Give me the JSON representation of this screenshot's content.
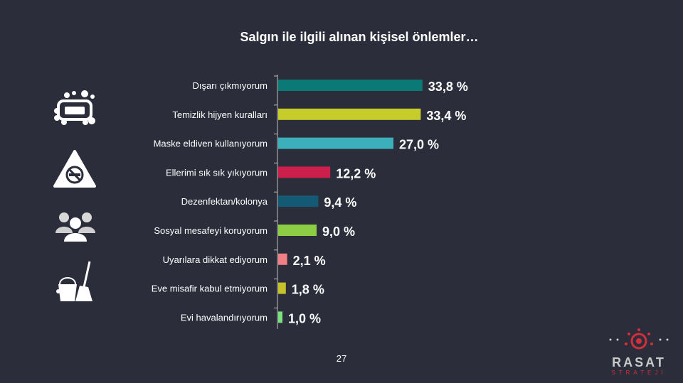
{
  "title": "Salgın ile ilgili alınan kişisel önlemler…",
  "page_number": "27",
  "logo": {
    "name": "RASAT",
    "sub": "STRATEJİ"
  },
  "icons": [
    "soap-icon",
    "no-smoking-icon",
    "people-icon",
    "cleaning-icon"
  ],
  "chart_data": {
    "type": "bar",
    "orientation": "horizontal",
    "categories": [
      "Dışarı çıkmıyorum",
      "Temizlik hijyen kuralları",
      "Maske eldiven kullanıyorum",
      "Ellerimi sık sık yıkıyorum",
      "Dezenfektan/kolonya",
      "Sosyal mesafeyi koruyorum",
      "Uyarılara dikkat ediyorum",
      "Eve misafir kabul etmiyorum",
      "Evi havalandırıyorum"
    ],
    "values": [
      33.8,
      33.4,
      27.0,
      12.2,
      9.4,
      9.0,
      2.1,
      1.8,
      1.0
    ],
    "value_labels": [
      "33,8 %",
      "33,4 %",
      "27,0 %",
      "12,2 %",
      "9,4 %",
      "9,0 %",
      "2,1 %",
      "1,8 %",
      "1,0 %"
    ],
    "colors": [
      "#0b7a76",
      "#c6cc2a",
      "#3bb0bb",
      "#cc1f4b",
      "#145a74",
      "#8ccd45",
      "#f07f86",
      "#c5c22a",
      "#7ce07f"
    ],
    "xlim": [
      0,
      40
    ],
    "grid": false,
    "legend": "none"
  }
}
